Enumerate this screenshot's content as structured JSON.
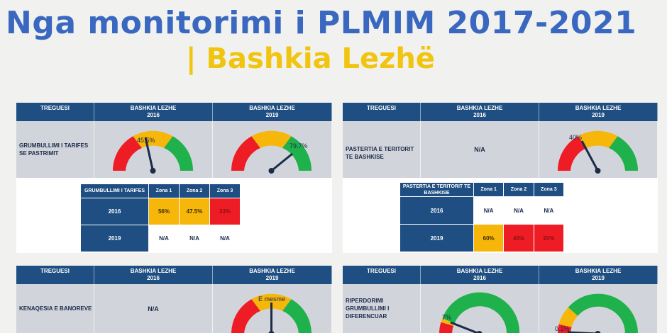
{
  "title": {
    "line1": "Nga monitorimi i PLMIM 2017-2021",
    "line2": "| Bashkia Lezhë"
  },
  "colors": {
    "blue_title": "#3a68c0",
    "yellow_title": "#f1c40f",
    "header_blue": "#1f4e82",
    "gauge_red": "#ee1c25",
    "gauge_yellow": "#f6b60a",
    "gauge_green": "#1fb14b"
  },
  "headers": {
    "treguesi": "TREGUESI",
    "col2016_line1": "BASHKIA LEZHE",
    "col2016_line2": "2016",
    "col2019_line1": "BASHKIA LEZHE",
    "col2019_line2": "2019"
  },
  "panels": [
    {
      "indicator": "GRUMBULLIMI I TARIFES SE PASTRIMIT",
      "gauge2016": {
        "label": "45.5%",
        "value": 45.5
      },
      "gauge2019": {
        "label": "79.7%",
        "value": 79.7
      },
      "zones": {
        "title": "GRUMBULLIMI I TARIFES",
        "cols": [
          "Zona 1",
          "Zona 2",
          "Zona 3"
        ],
        "rows": [
          {
            "year": "2016",
            "cells": [
              "56%",
              "47.5%",
              "33%"
            ]
          },
          {
            "year": "2019",
            "cells": [
              "N/A",
              "N/A",
              "N/A"
            ]
          }
        ]
      }
    },
    {
      "indicator": "PASTERTIA E TERITORIT TE BASHKISE",
      "value2016": "N/A",
      "gauge2019": {
        "label": "40%",
        "value": 40
      },
      "zones": {
        "title": "PASTERTIA E TERITORIT TE BASHKISE",
        "cols": [
          "Zona 1",
          "Zona 2",
          "Zona 3"
        ],
        "rows": [
          {
            "year": "2016",
            "cells": [
              "N/A",
              "N/A",
              "N/A"
            ]
          },
          {
            "year": "2019",
            "cells": [
              "60%",
              "40%",
              "20%"
            ]
          }
        ]
      }
    },
    {
      "indicator": "KENAQESIA E BANOREVE",
      "value2016": "N/A",
      "gauge2019": {
        "label": "E mesme"
      }
    },
    {
      "indicator": "RIPERDORIMI GRUMBULLIMI I DIFERENCUAR",
      "gauge2016": {
        "label": "7%",
        "value": 7
      },
      "gauge2019": {
        "label": "0.1%",
        "value": 0.1
      }
    }
  ]
}
